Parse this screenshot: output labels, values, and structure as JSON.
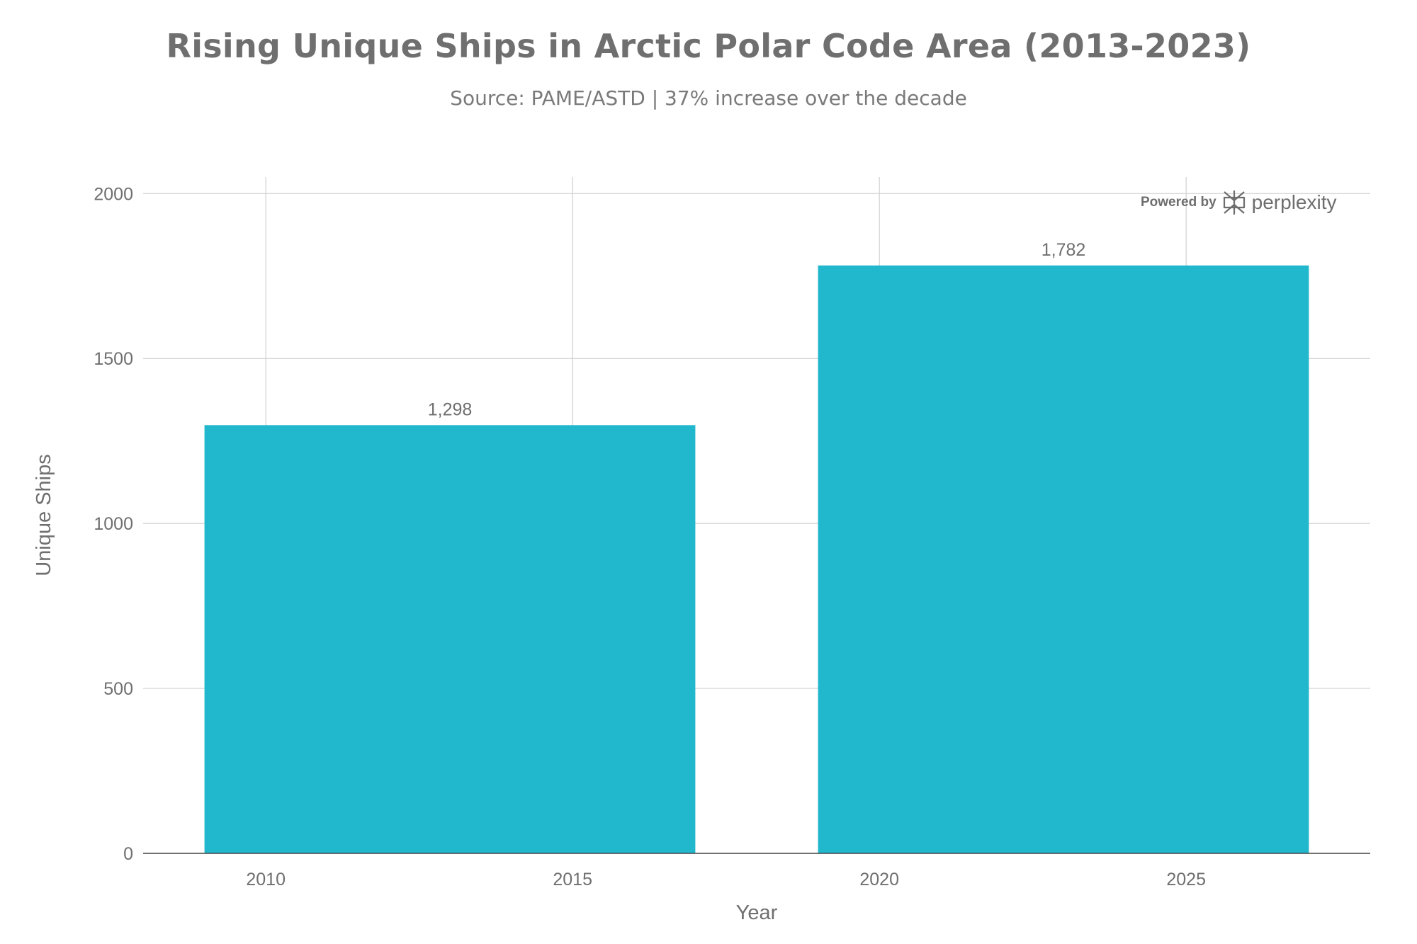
{
  "colors": {
    "bar": "#21b7cd",
    "grid": "#d0d0d0",
    "axis": "#444444",
    "text": "#6f6f6f"
  },
  "watermark": {
    "powered_by": "Powered by",
    "brand": "perplexity",
    "icon": "perplexity-logo-icon"
  },
  "chart_data": {
    "type": "bar",
    "title": "Rising Unique Ships in Arctic Polar Code Area (2013-2023)",
    "subtitle": "Source: PAME/ASTD | 37% increase over the decade",
    "xlabel": "Year",
    "ylabel": "Unique Ships",
    "xlim": [
      2008,
      2028
    ],
    "ylim": [
      0,
      2050
    ],
    "xticks": [
      2010,
      2015,
      2020,
      2025
    ],
    "yticks": [
      0,
      500,
      1000,
      1500,
      2000
    ],
    "grid": true,
    "bars": [
      {
        "x": 2013,
        "value": 1298,
        "label": "1,298"
      },
      {
        "x": 2023,
        "value": 1782,
        "label": "1,782"
      }
    ],
    "bar_width_years": 8
  }
}
